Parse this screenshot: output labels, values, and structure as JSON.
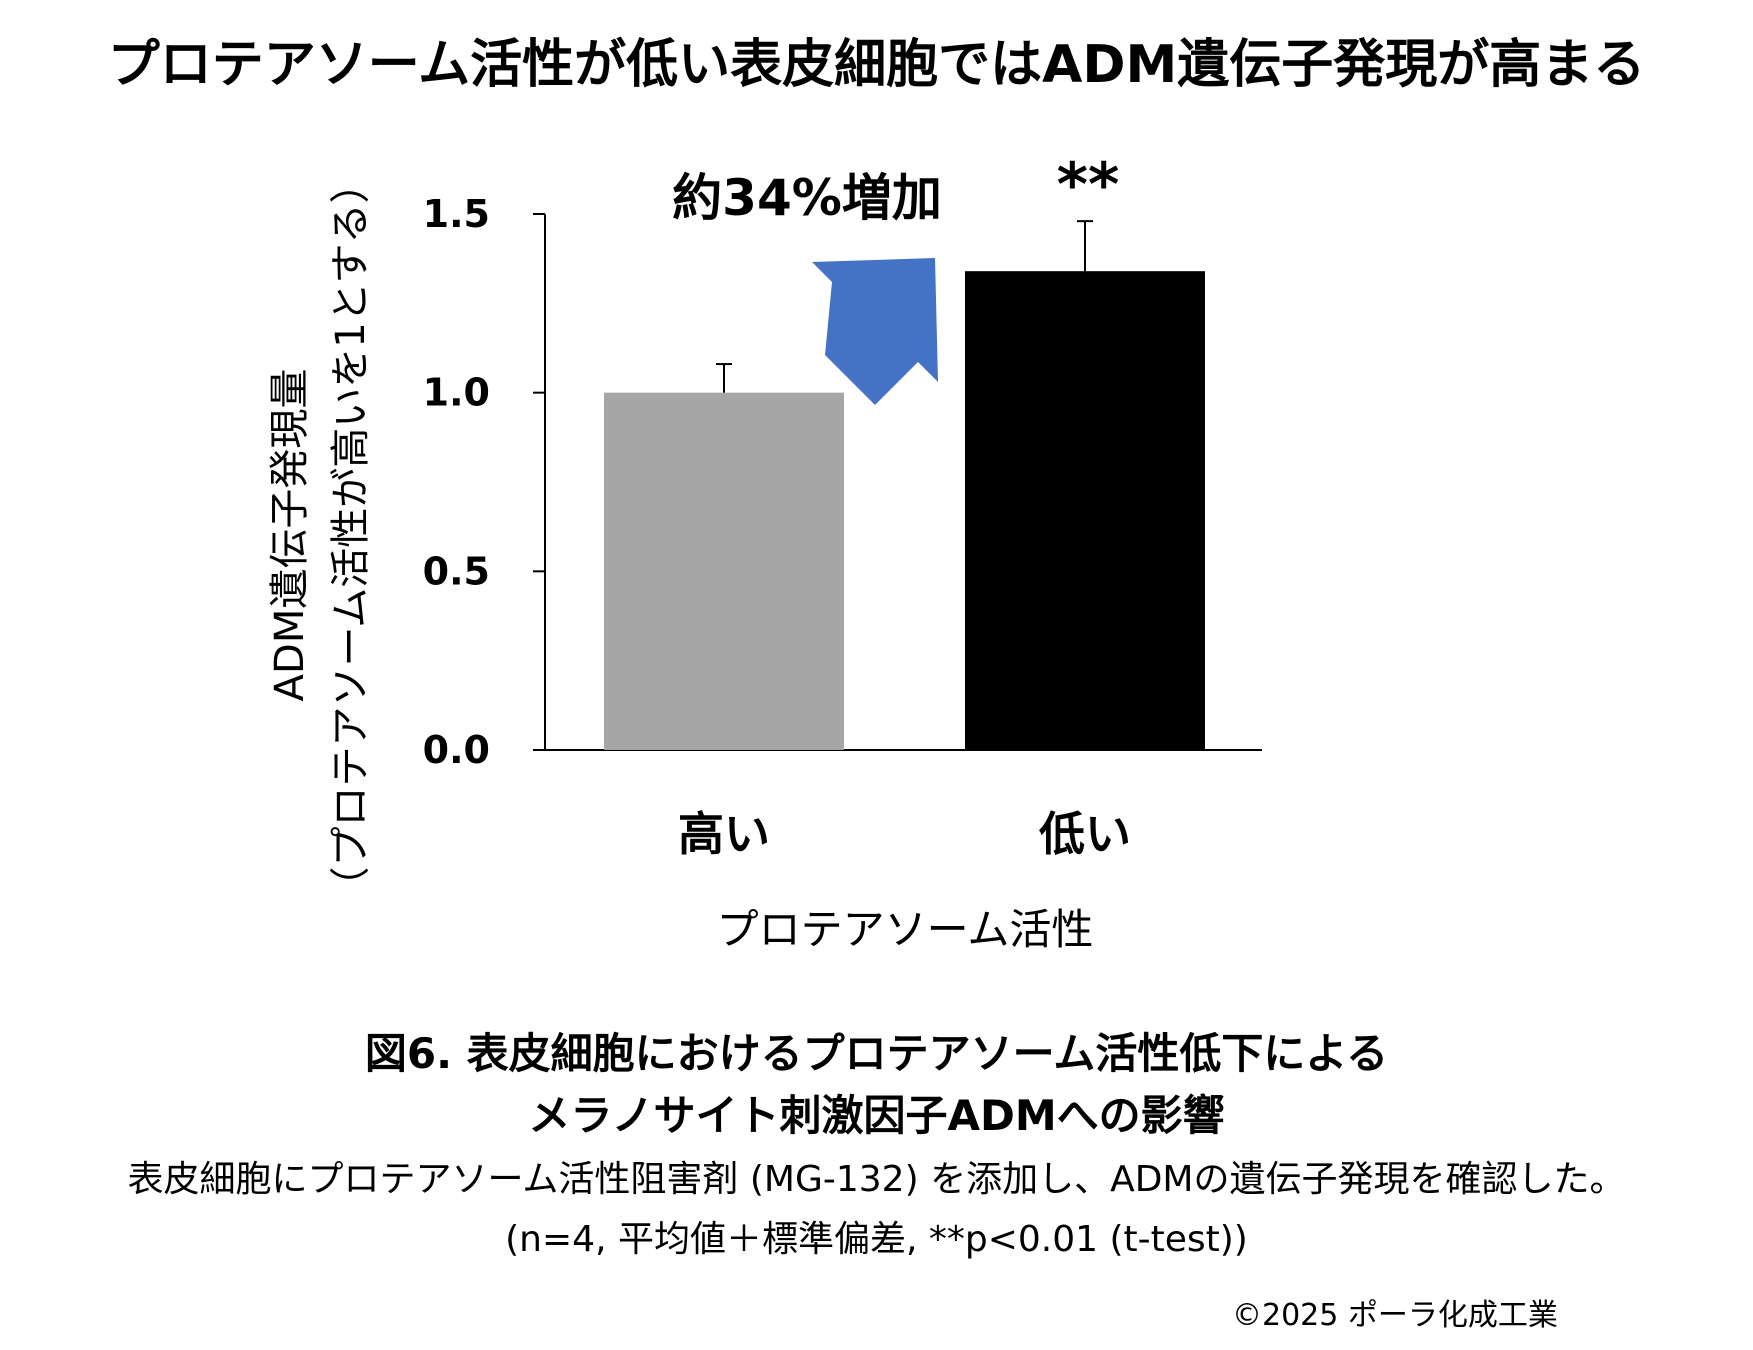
{
  "title": "プロテアソーム活性が低い表皮細胞ではADM遺伝子発現が高まる",
  "chart_data": {
    "type": "bar",
    "categories": [
      "高い",
      "低い"
    ],
    "values": [
      1.0,
      1.34
    ],
    "error_bars": [
      0.08,
      0.14
    ],
    "colors": [
      "#a6a6a6",
      "#000000"
    ],
    "ylim": [
      0,
      1.5
    ],
    "yticks": [
      "0.0",
      "0.5",
      "1.0",
      "1.5"
    ],
    "ytick_values": [
      0,
      0.5,
      1.0,
      1.5
    ],
    "ylabel_line1": "ADM遺伝子発現量",
    "ylabel_line2": "（プロテアソーム活性が高いを1とする）",
    "xlabel": "プロテアソーム活性",
    "annotation": "約34%増加",
    "significance": "**",
    "arrow_color": "#4472c4"
  },
  "caption": {
    "line1": "図6. 表皮細胞におけるプロテアソーム活性低下による",
    "line2": "メラノサイト刺激因子ADMへの影響",
    "line3": "表皮細胞にプロテアソーム活性阻害剤 (MG-132) を添加し、ADMの遺伝子発現を確認した。",
    "line4": "(n=4, 平均値＋標準偏差, **p<0.01 (t-test))"
  },
  "copyright": "©2025 ポーラ化成工業"
}
